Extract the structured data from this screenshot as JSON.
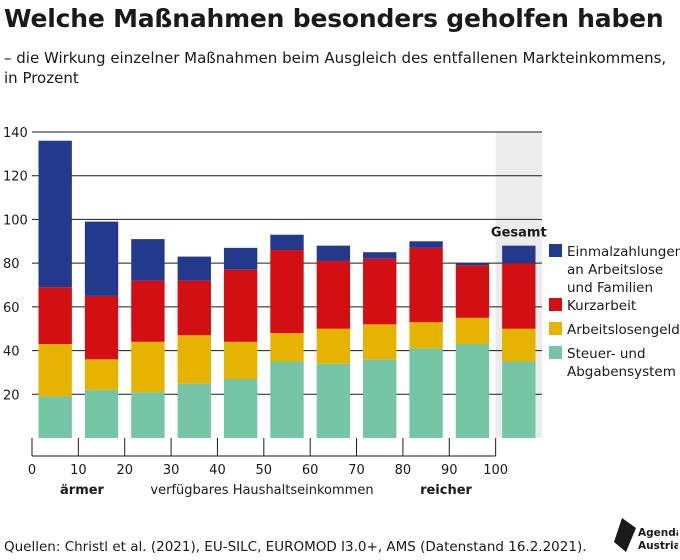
{
  "title": "Welche Maßnahmen besonders geholfen haben",
  "subtitle": "– die Wirkung einzelner Maßnahmen beim Ausgleich des entfallenen Markteinkommens, in Prozent",
  "source": "Quellen: Christl et al. (2021), EU-SILC, EUROMOD I3.0+, AMS (Datenstand 16.2.2021).",
  "logo": {
    "line1": "Agenda",
    "line2": "Austria"
  },
  "colors": {
    "einmal": "#233a8c",
    "kurzarbeit": "#d40f14",
    "alg": "#e6b400",
    "steuer": "#76c5a7",
    "highlight": "#ececec"
  },
  "chart_data": {
    "type": "bar",
    "stacked": true,
    "categories": [
      "0–10",
      "10–20",
      "20–30",
      "30–40",
      "40–50",
      "50–60",
      "60–70",
      "70–80",
      "80–90",
      "90–100",
      "Gesamt"
    ],
    "x_ticks": [
      "0",
      "10",
      "20",
      "30",
      "40",
      "50",
      "60",
      "70",
      "80",
      "90",
      "100"
    ],
    "total_label": "Gesamt",
    "xlabel": "verfügbares Haushaltseinkommen",
    "xlabel_left": "ärmer",
    "xlabel_right": "reicher",
    "ylim": [
      0,
      140
    ],
    "y_ticks": [
      20,
      40,
      60,
      80,
      100,
      120,
      140
    ],
    "series": [
      {
        "key": "steuer",
        "name": "Steuer- und Abgabensystem",
        "label_lines": [
          "Steuer- und",
          "Abgabensystem"
        ],
        "values": [
          19,
          22,
          21,
          25,
          27,
          35,
          34,
          36,
          41,
          43,
          35
        ]
      },
      {
        "key": "alg",
        "name": "Arbeitslosengeld",
        "label_lines": [
          "Arbeitslosengeld"
        ],
        "values": [
          24,
          14,
          23,
          22,
          17,
          13,
          16,
          16,
          12,
          12,
          15
        ]
      },
      {
        "key": "kurzarbeit",
        "name": "Kurzarbeit",
        "label_lines": [
          "Kurzarbeit"
        ],
        "values": [
          26,
          29,
          28,
          25,
          33,
          38,
          31,
          30,
          34,
          24,
          30
        ]
      },
      {
        "key": "einmal",
        "name": "Einmalzahlungen an Arbeitslose und Familien",
        "label_lines": [
          "Einmalzahlungen",
          "an Arbeitslose",
          "und Familien"
        ],
        "values": [
          67,
          34,
          19,
          11,
          10,
          7,
          7,
          3,
          3,
          1,
          8
        ]
      }
    ],
    "legend_order": [
      "einmal",
      "kurzarbeit",
      "alg",
      "steuer"
    ],
    "legend_position": "right",
    "grid": true
  }
}
